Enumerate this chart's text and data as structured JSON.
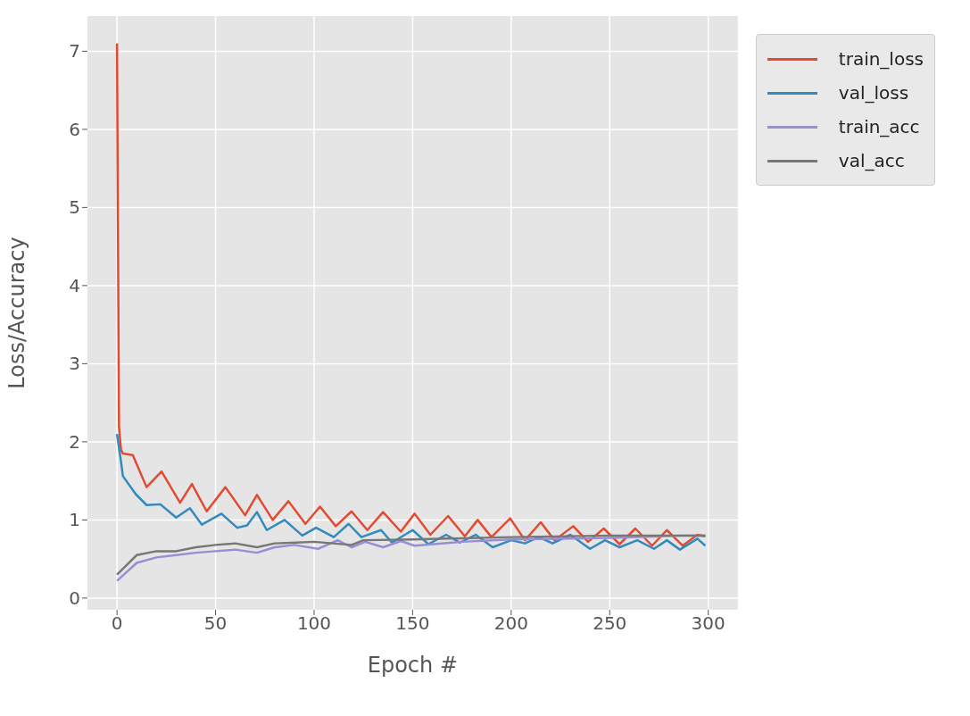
{
  "chart_data": {
    "type": "line",
    "xlabel": "Epoch #",
    "ylabel": "Loss/Accuracy",
    "xlim": [
      -15,
      315
    ],
    "ylim": [
      -0.15,
      7.45
    ],
    "xticks": [
      0,
      50,
      100,
      150,
      200,
      250,
      300
    ],
    "yticks": [
      0,
      1,
      2,
      3,
      4,
      5,
      6,
      7
    ],
    "grid": true,
    "legend": "top right",
    "marker": "none",
    "line_style": "solid",
    "series": [
      {
        "name": "train_loss",
        "color": "#e24a33",
        "x": [
          0,
          1,
          2,
          3,
          8,
          15,
          22.6,
          32,
          38,
          45.5,
          55,
          65,
          71,
          79,
          87,
          95.6,
          103,
          111,
          119,
          127,
          135,
          144,
          151,
          159,
          168,
          176.5,
          183,
          190,
          199.5,
          207,
          215,
          222,
          231.5,
          239,
          247,
          255,
          263,
          271.5,
          279,
          287,
          294.5,
          298.5
        ],
        "values": [
          7.1,
          2.2,
          1.9,
          1.85,
          1.83,
          1.42,
          1.62,
          1.22,
          1.46,
          1.11,
          1.42,
          1.06,
          1.32,
          1.0,
          1.24,
          0.95,
          1.17,
          0.92,
          1.11,
          0.87,
          1.1,
          0.85,
          1.08,
          0.81,
          1.05,
          0.79,
          1.0,
          0.78,
          1.02,
          0.74,
          0.97,
          0.74,
          0.92,
          0.72,
          0.89,
          0.69,
          0.89,
          0.67,
          0.87,
          0.67,
          0.81,
          0.79
        ]
      },
      {
        "name": "val_loss",
        "color": "#348abd",
        "x": [
          0,
          2,
          3,
          9.5,
          15,
          22,
          30,
          37,
          43,
          53,
          61,
          66,
          71,
          76,
          85,
          94,
          101,
          110,
          117.5,
          124,
          134,
          139.5,
          150,
          158,
          167,
          174,
          182,
          190.6,
          200,
          207,
          214,
          221,
          230,
          240,
          247.6,
          255,
          264,
          272.5,
          279,
          285.6,
          294.5,
          298.5
        ],
        "values": [
          2.1,
          1.75,
          1.56,
          1.33,
          1.19,
          1.2,
          1.03,
          1.15,
          0.94,
          1.08,
          0.9,
          0.93,
          1.1,
          0.87,
          1.0,
          0.8,
          0.9,
          0.78,
          0.95,
          0.78,
          0.87,
          0.71,
          0.87,
          0.69,
          0.81,
          0.71,
          0.81,
          0.65,
          0.74,
          0.7,
          0.78,
          0.7,
          0.81,
          0.63,
          0.74,
          0.65,
          0.74,
          0.63,
          0.74,
          0.62,
          0.76,
          0.67
        ]
      },
      {
        "name": "train_acc",
        "color": "#988ed5",
        "x": [
          0,
          10,
          20,
          30,
          40,
          50,
          60,
          71,
          80,
          90,
          102,
          112,
          119,
          126,
          135,
          144,
          151,
          175,
          200,
          250,
          290,
          298.5
        ],
        "values": [
          0.22,
          0.45,
          0.52,
          0.55,
          0.58,
          0.6,
          0.62,
          0.58,
          0.65,
          0.68,
          0.63,
          0.74,
          0.65,
          0.72,
          0.65,
          0.73,
          0.67,
          0.72,
          0.75,
          0.77,
          0.8,
          0.8
        ]
      },
      {
        "name": "val_acc",
        "color": "#777777",
        "x": [
          0,
          10,
          20,
          30,
          40,
          50,
          60,
          71,
          80,
          91,
          100,
          119,
          125,
          150,
          200,
          250,
          298.5
        ],
        "values": [
          0.3,
          0.55,
          0.6,
          0.6,
          0.65,
          0.68,
          0.7,
          0.65,
          0.7,
          0.71,
          0.72,
          0.68,
          0.74,
          0.75,
          0.78,
          0.8,
          0.8
        ]
      }
    ]
  }
}
